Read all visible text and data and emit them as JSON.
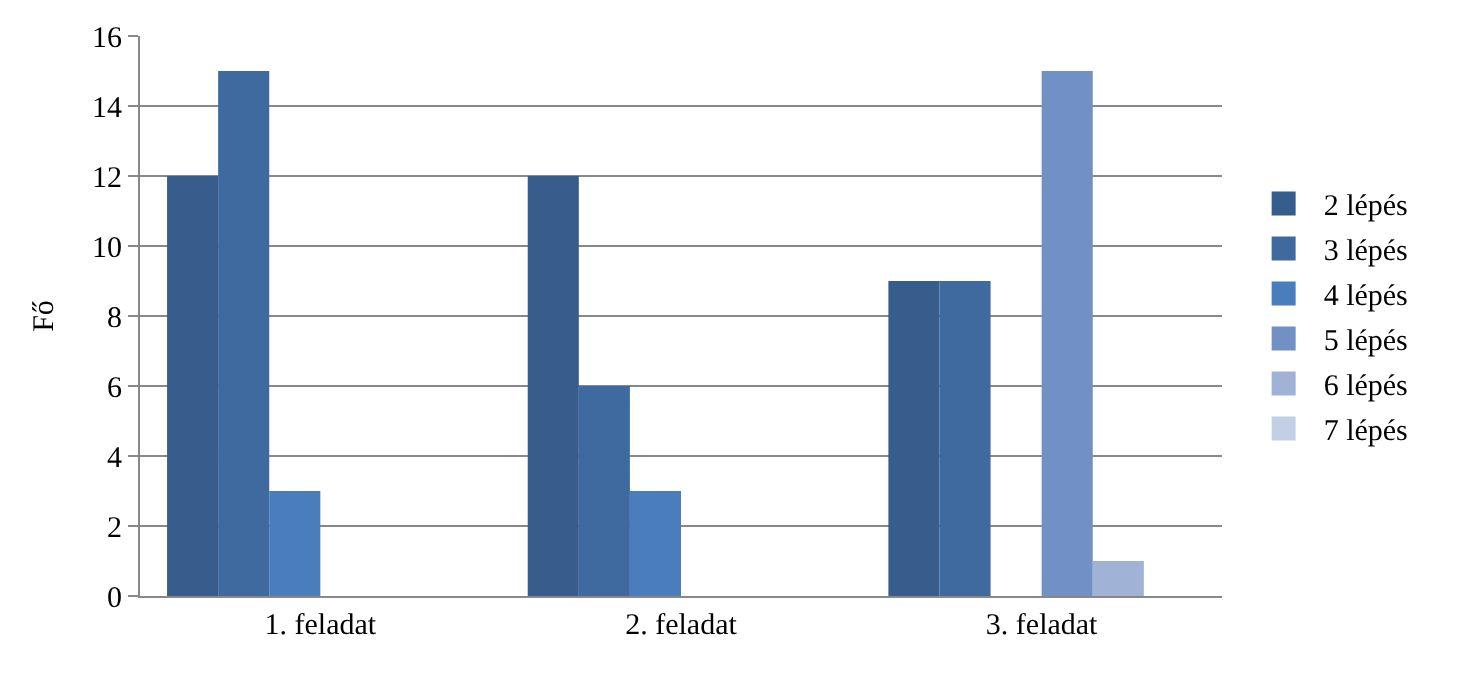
{
  "chart_data": {
    "type": "bar",
    "ylabel": "Fő",
    "categories": [
      "1. feladat",
      "2. feladat",
      "3. feladat"
    ],
    "series": [
      {
        "name": "2 lépés",
        "color": "#375d8c",
        "values": [
          12,
          12,
          9
        ]
      },
      {
        "name": "3 lépés",
        "color": "#3f6a9f",
        "values": [
          15,
          6,
          9
        ]
      },
      {
        "name": "4 lépés",
        "color": "#4a7dbb",
        "values": [
          3,
          3,
          0
        ]
      },
      {
        "name": "5 lépés",
        "color": "#7191c5",
        "values": [
          0,
          0,
          15
        ]
      },
      {
        "name": "6 lépés",
        "color": "#a0b3d6",
        "values": [
          0,
          0,
          1
        ]
      },
      {
        "name": "7 lépés",
        "color": "#c3cfe5",
        "values": [
          0,
          0,
          0
        ]
      }
    ],
    "ylim": [
      0,
      16
    ],
    "yticks": [
      0,
      2,
      4,
      6,
      8,
      10,
      12,
      14,
      16
    ],
    "grid": "y",
    "legend": "right"
  }
}
